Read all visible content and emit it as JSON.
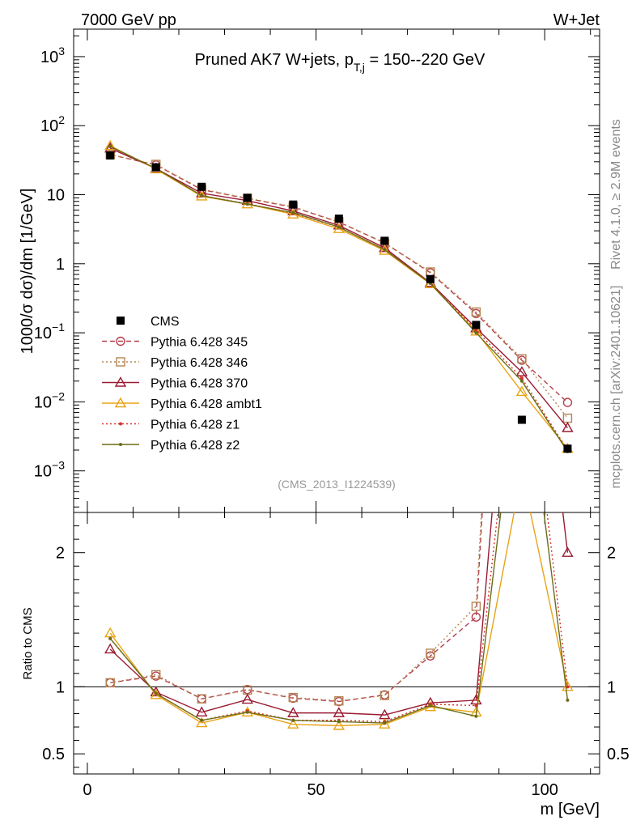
{
  "header": {
    "left": "7000 GeV pp",
    "right": "W+Jet"
  },
  "side": {
    "rivet": "Rivet 4.1.0, ≥ 2.9M events",
    "mcplots": "mcplots.cern.ch [arXiv:2401.10621]"
  },
  "chart_data": {
    "type": "line",
    "title": "Pruned AK7 W+jets, p_T,j = 150--220 GeV",
    "title_main": "Pruned AK7 W+jets, p",
    "title_sub": "T,j",
    "title_tail": " = 150--220 GeV",
    "analysis_id": "(CMS_2013_I1224539)",
    "ylabel": "1000/σ  dσ)/dm [1/GeV]",
    "ratio_ylabel": "Ratio to CMS",
    "xlabel": "m [GeV]",
    "x": [
      5,
      15,
      25,
      35,
      45,
      55,
      65,
      75,
      85,
      95,
      105
    ],
    "xlim": [
      -3,
      112
    ],
    "ylim_log": [
      0.00025,
      2500
    ],
    "ratio_ylim": [
      0.35,
      2.3
    ],
    "x_ticks": [
      {
        "value": 0,
        "label": "0"
      },
      {
        "value": 50,
        "label": "50"
      },
      {
        "value": 100,
        "label": "100"
      }
    ],
    "y_ticks": [
      {
        "value": 1000,
        "base": "10",
        "exp": "3"
      },
      {
        "value": 100,
        "base": "10",
        "exp": "2"
      },
      {
        "value": 10,
        "base": "10",
        "exp": ""
      },
      {
        "value": 1,
        "base": "1",
        "exp": ""
      },
      {
        "value": 0.1,
        "base": "10",
        "exp": "−1"
      },
      {
        "value": 0.01,
        "base": "10",
        "exp": "−2"
      },
      {
        "value": 0.001,
        "base": "10",
        "exp": "−3"
      }
    ],
    "ratio_ticks": [
      {
        "value": 2,
        "label": "2"
      },
      {
        "value": 1,
        "label": "1"
      },
      {
        "value": 0.5,
        "label": "0.5"
      }
    ],
    "data": {
      "name": "CMS",
      "values": [
        37,
        25,
        13,
        9,
        7.2,
        4.5,
        2.15,
        0.6,
        0.13,
        0.0055,
        0.0021
      ]
    },
    "series": [
      {
        "name": "Pythia 6.428 345",
        "color": "#b5404e",
        "marker": "circle",
        "dash": "6,4",
        "values": [
          38,
          27,
          11.8,
          8.8,
          6.6,
          4.0,
          2.0,
          0.74,
          0.19,
          0.04,
          0.0098
        ],
        "ratio": [
          1.03,
          1.08,
          0.91,
          0.98,
          0.915,
          0.89,
          0.94,
          1.23,
          1.52,
          7.3,
          4.7
        ]
      },
      {
        "name": "Pythia 6.428 346",
        "color": "#b58553",
        "marker": "square",
        "dash": "2,3",
        "values": [
          38,
          27.5,
          12.0,
          8.9,
          6.7,
          4.05,
          2.0,
          0.76,
          0.2,
          0.042,
          0.0058
        ],
        "ratio": [
          1.03,
          1.09,
          0.91,
          0.975,
          0.92,
          0.895,
          0.935,
          1.25,
          1.6,
          7.6,
          2.8
        ]
      },
      {
        "name": "Pythia 6.428 370",
        "color": "#9a1a32",
        "marker": "triangle",
        "dash": "",
        "values": [
          47,
          24,
          10.5,
          8.2,
          5.8,
          3.6,
          1.7,
          0.53,
          0.117,
          0.027,
          0.0042
        ],
        "ratio": [
          1.28,
          0.96,
          0.81,
          0.905,
          0.805,
          0.805,
          0.79,
          0.88,
          0.9,
          4.9,
          2.0
        ]
      },
      {
        "name": "Pythia 6.428 ambt1",
        "color": "#e8a317",
        "marker": "triangle",
        "dash": "",
        "values": [
          51,
          23.5,
          9.5,
          7.3,
          5.2,
          3.2,
          1.55,
          0.51,
          0.105,
          0.014,
          0.0021
        ],
        "ratio": [
          1.4,
          0.94,
          0.73,
          0.81,
          0.72,
          0.71,
          0.72,
          0.85,
          0.81,
          2.6,
          1.0
        ]
      },
      {
        "name": "Pythia 6.428 z1",
        "color": "#d8312b",
        "marker": "dot",
        "dash": "2,3",
        "values": [
          50,
          24,
          9.7,
          7.4,
          5.4,
          3.4,
          1.6,
          0.52,
          0.11,
          0.022,
          0.002
        ],
        "ratio": [
          1.36,
          0.95,
          0.75,
          0.82,
          0.75,
          0.75,
          0.74,
          0.87,
          0.86,
          3.9,
          1.0
        ]
      },
      {
        "name": "Pythia 6.428 z2",
        "color": "#6b6d17",
        "marker": "dot",
        "dash": "",
        "values": [
          50,
          24,
          9.7,
          7.3,
          5.5,
          3.4,
          1.6,
          0.52,
          0.1,
          0.02,
          0.0019
        ],
        "ratio": [
          1.36,
          0.95,
          0.75,
          0.81,
          0.75,
          0.74,
          0.73,
          0.86,
          0.78,
          3.6,
          0.9
        ]
      }
    ]
  }
}
